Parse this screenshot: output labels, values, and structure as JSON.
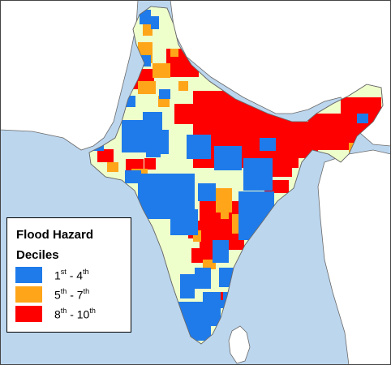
{
  "legend": {
    "title": "Flood Hazard",
    "subtitle": "Deciles",
    "items": [
      {
        "n1": "1",
        "s1": "st",
        "sep": " - ",
        "n2": "4",
        "s2": "th",
        "color": "#1f7bea"
      },
      {
        "n1": "5",
        "s1": "th",
        "sep": " - ",
        "n2": "7",
        "s2": "th",
        "color": "#ffa519"
      },
      {
        "n1": "8",
        "s1": "th",
        "sep": " - ",
        "n2": "10",
        "s2": "th",
        "color": "#ff0000"
      }
    ]
  },
  "colors": {
    "sea": "#bcd6ee",
    "land_outside": "#ffffff",
    "base_land": "#efffcc",
    "border": "#6a6a6a"
  }
}
